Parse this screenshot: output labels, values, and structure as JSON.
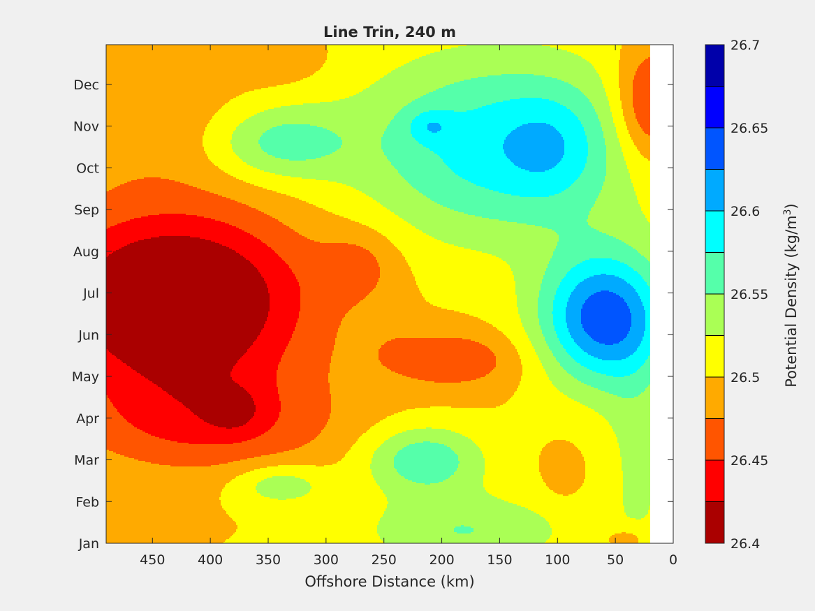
{
  "chart_data": {
    "type": "heatmap",
    "subtype": "filled-contour",
    "title": "Line Trin, 240 m",
    "xlabel": "Offshore Distance (km)",
    "ylabel": "",
    "xlim": [
      490,
      0
    ],
    "x_reversed": true,
    "xticks": [
      450,
      400,
      350,
      300,
      250,
      200,
      150,
      100,
      50,
      0
    ],
    "ylim": [
      0,
      11.95
    ],
    "yticks": [
      "Jan",
      "Feb",
      "Mar",
      "Apr",
      "May",
      "Jun",
      "Jul",
      "Aug",
      "Sep",
      "Oct",
      "Nov",
      "Dec"
    ],
    "no_data_x_range": [
      20,
      0
    ],
    "colorbar": {
      "label_prefix": "Potential Density (kg/m",
      "label_superscript": "3",
      "label_suffix": ")",
      "ticks": [
        "26.4",
        "26.45",
        "26.5",
        "26.55",
        "26.6",
        "26.65",
        "26.7"
      ],
      "levels": [
        26.4,
        26.425,
        26.45,
        26.475,
        26.5,
        26.525,
        26.55,
        26.575,
        26.6,
        26.625,
        26.65,
        26.675,
        26.7
      ],
      "colors": [
        "#aa0000",
        "#ff0000",
        "#ff5500",
        "#ffaa00",
        "#ffff00",
        "#aaff55",
        "#55ffaa",
        "#00ffff",
        "#00aaff",
        "#0055ff",
        "#0000ff",
        "#0000aa"
      ]
    },
    "features": [
      {
        "kind": "base",
        "value": 26.5
      },
      {
        "kind": "blob",
        "x": 430,
        "y": 5.8,
        "sx": 110,
        "sy": 2.1,
        "amp": -0.13
      },
      {
        "kind": "blob",
        "x": 400,
        "y": 2.9,
        "sx": 110,
        "sy": 1.2,
        "amp": -0.05
      },
      {
        "kind": "blob",
        "x": 380,
        "y": 3.2,
        "sx": 22,
        "sy": 0.5,
        "amp": -0.03
      },
      {
        "kind": "blob",
        "x": 270,
        "y": 6.7,
        "sx": 35,
        "sy": 0.9,
        "amp": -0.03
      },
      {
        "kind": "blob",
        "x": 450,
        "y": 10.2,
        "sx": 90,
        "sy": 1.6,
        "amp": -0.02
      },
      {
        "kind": "blob",
        "x": 340,
        "y": 11.6,
        "sx": 40,
        "sy": 0.6,
        "amp": -0.02
      },
      {
        "kind": "blob",
        "x": 190,
        "y": 4.4,
        "sx": 60,
        "sy": 0.7,
        "amp": -0.045
      },
      {
        "kind": "blob",
        "x": 235,
        "y": 4.6,
        "sx": 15,
        "sy": 0.3,
        "amp": -0.02
      },
      {
        "kind": "blob",
        "x": 20,
        "y": 10.5,
        "sx": 30,
        "sy": 1.4,
        "amp": -0.07
      },
      {
        "kind": "blob",
        "x": 95,
        "y": 1.7,
        "sx": 16,
        "sy": 0.6,
        "amp": -0.02
      },
      {
        "kind": "blob",
        "x": 40,
        "y": 0.1,
        "sx": 20,
        "sy": 0.3,
        "amp": -0.03
      },
      {
        "kind": "blob",
        "x": 150,
        "y": 9.5,
        "sx": 120,
        "sy": 2.2,
        "amp": 0.09
      },
      {
        "kind": "blob",
        "x": 60,
        "y": 5.4,
        "sx": 55,
        "sy": 1.6,
        "amp": 0.14
      },
      {
        "kind": "blob",
        "x": 105,
        "y": 9.5,
        "sx": 40,
        "sy": 1.3,
        "amp": 0.03
      },
      {
        "kind": "blob",
        "x": 210,
        "y": 10.0,
        "sx": 20,
        "sy": 0.4,
        "amp": 0.035
      },
      {
        "kind": "blob",
        "x": 215,
        "y": 2.0,
        "sx": 50,
        "sy": 0.8,
        "amp": 0.07
      },
      {
        "kind": "blob",
        "x": 340,
        "y": 1.4,
        "sx": 40,
        "sy": 0.5,
        "amp": 0.045
      },
      {
        "kind": "blob",
        "x": 340,
        "y": 9.6,
        "sx": 60,
        "sy": 0.9,
        "amp": 0.06
      },
      {
        "kind": "blob",
        "x": 180,
        "y": 0.3,
        "sx": 90,
        "sy": 0.9,
        "amp": 0.05
      },
      {
        "kind": "blob",
        "x": 30,
        "y": 2.0,
        "sx": 30,
        "sy": 3.0,
        "amp": 0.03
      }
    ]
  }
}
